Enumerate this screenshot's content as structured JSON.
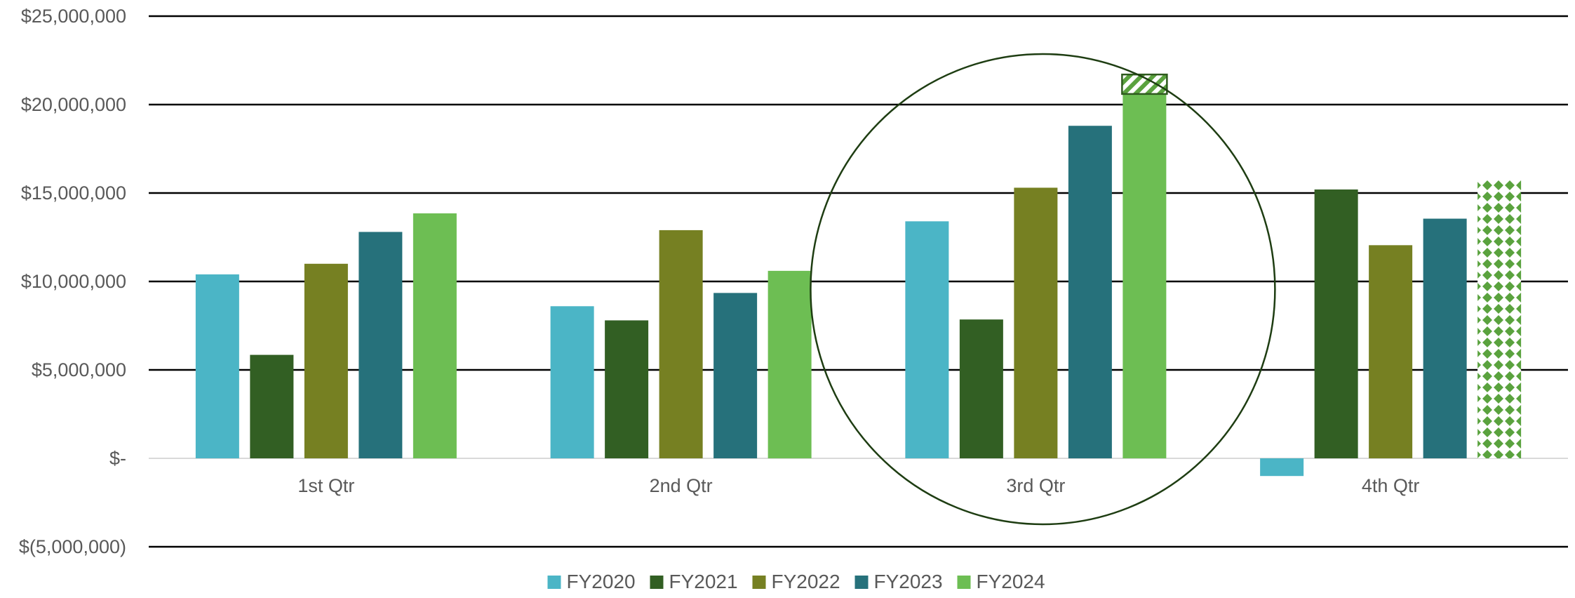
{
  "chart_data": {
    "type": "bar",
    "title": "",
    "xlabel": "",
    "ylabel": "",
    "ylim": [
      -5000000,
      25000000
    ],
    "y_ticks": [
      {
        "value": 25000000,
        "label": "$25,000,000"
      },
      {
        "value": 20000000,
        "label": "$20,000,000"
      },
      {
        "value": 15000000,
        "label": "$15,000,000"
      },
      {
        "value": 10000000,
        "label": "$10,000,000"
      },
      {
        "value": 5000000,
        "label": "$5,000,000"
      },
      {
        "value": 0,
        "label": "$-"
      },
      {
        "value": -5000000,
        "label": "$(5,000,000)"
      }
    ],
    "grid": true,
    "legend_position": "bottom",
    "categories": [
      "1st Qtr",
      "2nd Qtr",
      "3rd Qtr",
      "4th Qtr"
    ],
    "series": [
      {
        "name": "FY2020",
        "color": "#4bb5c6",
        "values": [
          10400000,
          8600000,
          13400000,
          -1000000
        ]
      },
      {
        "name": "FY2021",
        "color": "#325f23",
        "values": [
          5850000,
          7800000,
          7850000,
          15200000
        ]
      },
      {
        "name": "FY2022",
        "color": "#768022",
        "values": [
          11000000,
          12900000,
          15300000,
          12050000
        ]
      },
      {
        "name": "FY2023",
        "color": "#26717b",
        "values": [
          12800000,
          9350000,
          18800000,
          13550000
        ]
      },
      {
        "name": "FY2024",
        "color": "#6dbe53",
        "values": [
          13850000,
          10600000,
          20600000,
          15750000
        ]
      }
    ],
    "annotations": {
      "highlight_circle_category": "3rd Qtr",
      "hatched_extension": {
        "category": "3rd Qtr",
        "series": "FY2024",
        "from": 20600000,
        "to": 21700000,
        "pattern": "diagonal-stripes"
      },
      "patterned_bar": {
        "category": "4th Qtr",
        "series": "FY2024",
        "pattern": "diamond-dots"
      },
      "circle_color": "#1e3d12"
    }
  }
}
